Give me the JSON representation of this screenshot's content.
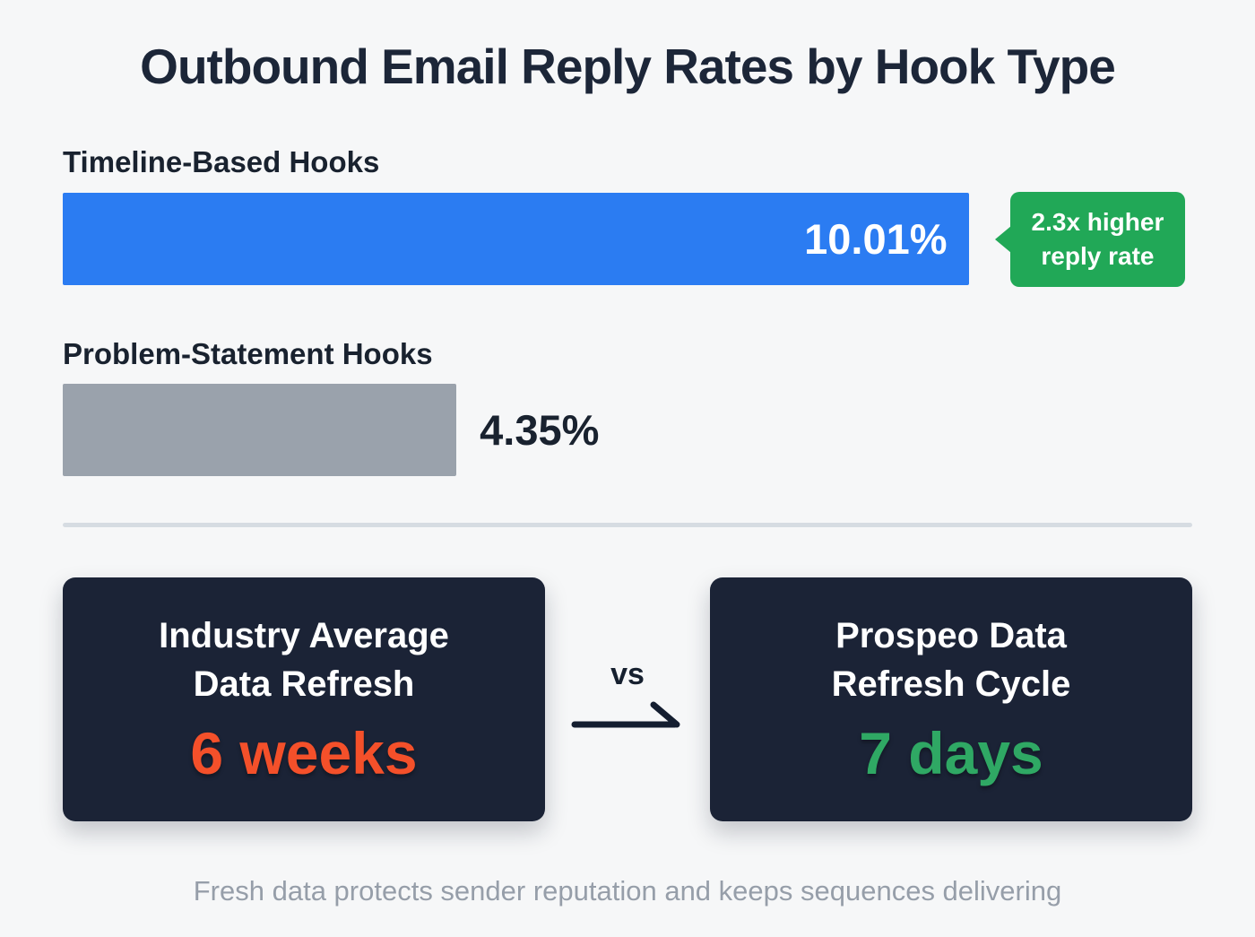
{
  "title": "Outbound Email Reply Rates by Hook Type",
  "chart_data": {
    "type": "bar",
    "orientation": "horizontal",
    "categories": [
      "Timeline-Based Hooks",
      "Problem-Statement Hooks"
    ],
    "values": [
      10.01,
      4.35
    ],
    "value_labels": [
      "10.01%",
      "4.35%"
    ],
    "bar_colors": [
      "#2b7cf2",
      "#9aa2ac"
    ],
    "xlim": [
      0,
      10.01
    ],
    "annotation": {
      "line1": "2.3x higher",
      "line2": "reply rate",
      "color": "#21a857"
    }
  },
  "comparison": {
    "vs_label": "vs",
    "left_card": {
      "title_line1": "Industry Average",
      "title_line2": "Data Refresh",
      "value": "6 weeks",
      "value_color": "#f4502a"
    },
    "right_card": {
      "title_line1": "Prospeo Data",
      "title_line2": "Refresh Cycle",
      "value": "7 days",
      "value_color": "#2fa864"
    }
  },
  "footer": "Fresh data protects sender reputation and keeps sequences delivering",
  "colors": {
    "background": "#f6f7f8",
    "title_text": "#1c2638",
    "card_background": "#1b2336",
    "divider": "#d6dce2"
  }
}
